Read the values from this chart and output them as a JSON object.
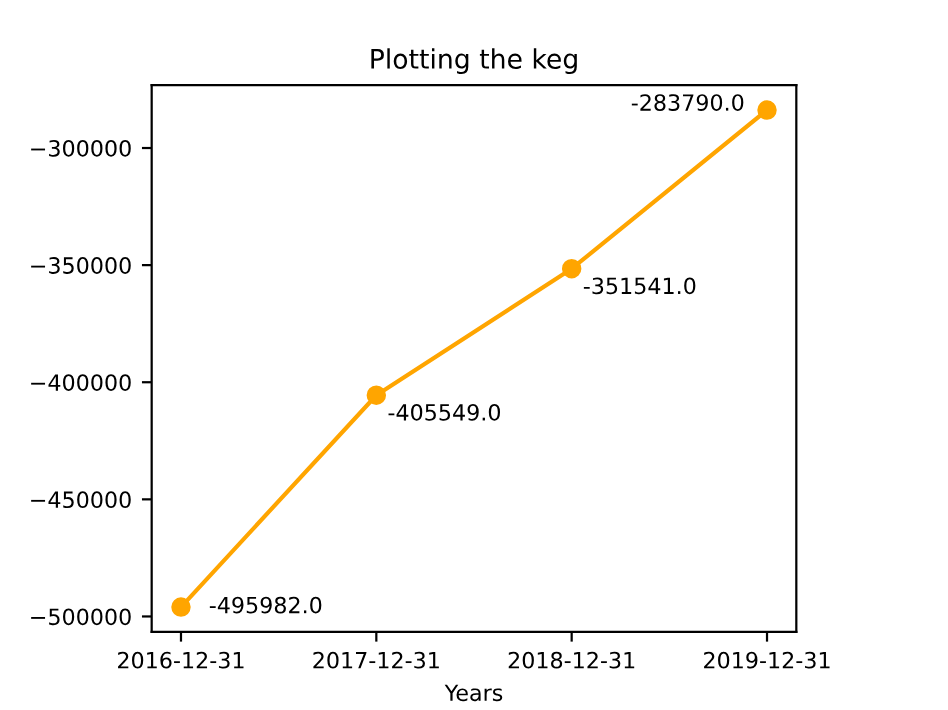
{
  "chart_data": {
    "type": "line",
    "title": "Plotting the keg",
    "xlabel": "Years",
    "categories": [
      "2016-12-31",
      "2017-12-31",
      "2018-12-31",
      "2019-12-31"
    ],
    "series": [
      {
        "color": "#ffa500",
        "values": [
          -495982.0,
          -405549.0,
          -351541.0,
          -283790.0
        ],
        "value_labels": [
          "-495982.0",
          "-405549.0",
          "-351541.0",
          "-283790.0"
        ]
      }
    ],
    "ylim": [
      -506592,
      -273180
    ],
    "yticks": [
      {
        "value": -500000,
        "label": "−500000"
      },
      {
        "value": -450000,
        "label": "−450000"
      },
      {
        "value": -400000,
        "label": "−400000"
      },
      {
        "value": -350000,
        "label": "−350000"
      },
      {
        "value": -300000,
        "label": "−300000"
      }
    ],
    "marker": "circle",
    "line_style": "solid",
    "grid": false,
    "legend": false
  }
}
